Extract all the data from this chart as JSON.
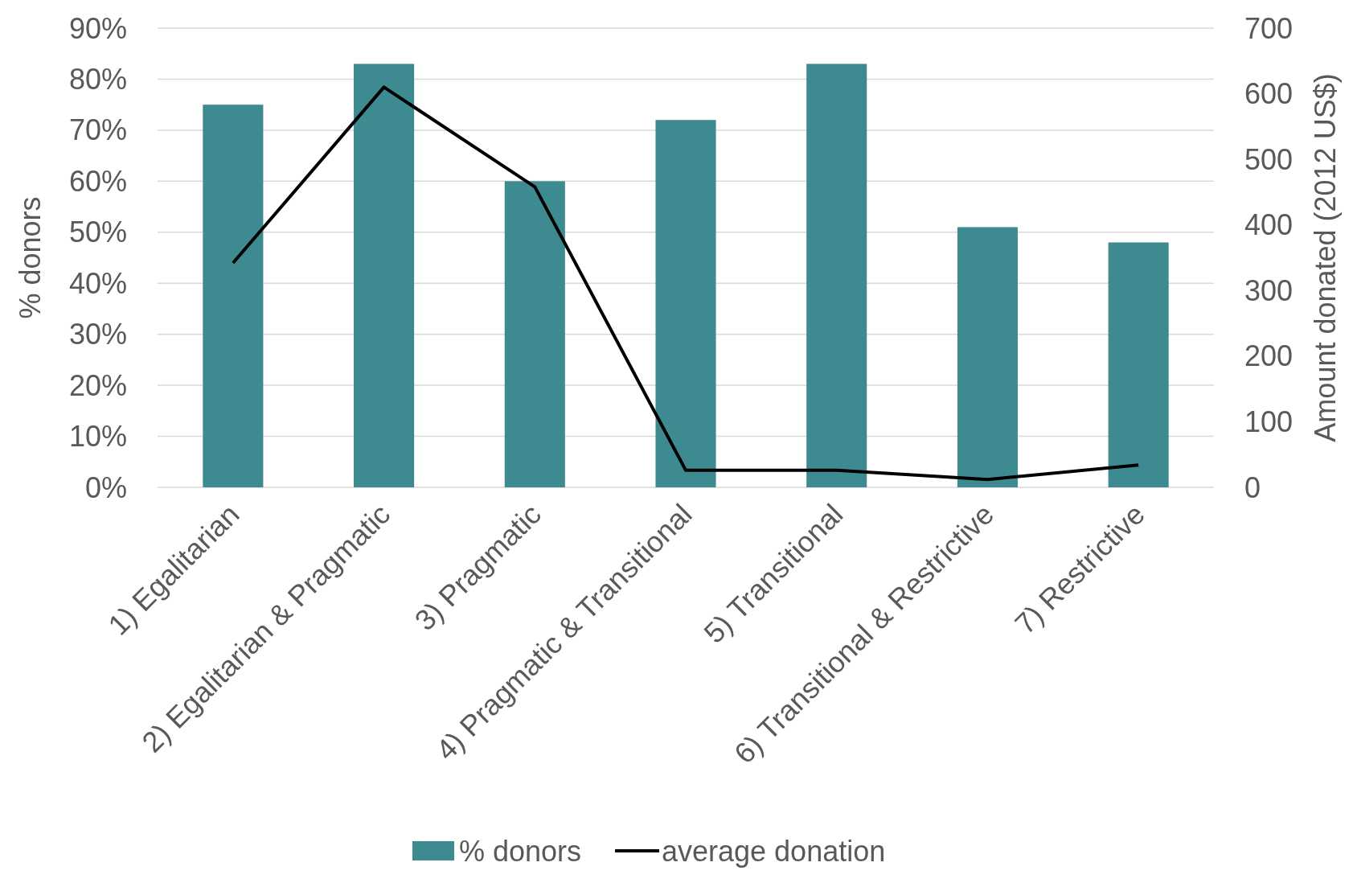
{
  "chart_data": {
    "type": "bar",
    "categories": [
      "1) Egalitarian",
      "2) Egalitarian & Pragmatic",
      "3) Pragmatic",
      "4) Pragmatic & Transitional",
      "5) Transitional",
      "6) Transitional & Restrictive",
      "7) Restrictive"
    ],
    "series": [
      {
        "name": "% donors",
        "color": "#3d8b91",
        "values": [
          75,
          83,
          60,
          72,
          83,
          51,
          48
        ]
      },
      {
        "name": "average donation",
        "type": "line",
        "axis": "y2",
        "color": "#000000",
        "values": [
          342,
          610,
          458,
          26,
          26,
          12,
          34
        ]
      }
    ],
    "ylabel": "% donors",
    "y2label": "Amount donated (2012 US$)",
    "ylim": [
      0,
      90
    ],
    "yticks": [
      {
        "value": 0,
        "label": "0%"
      },
      {
        "value": 10,
        "label": "10%"
      },
      {
        "value": 20,
        "label": "20%"
      },
      {
        "value": 30,
        "label": "30%"
      },
      {
        "value": 40,
        "label": "40%"
      },
      {
        "value": 50,
        "label": "50%"
      },
      {
        "value": 60,
        "label": "60%"
      },
      {
        "value": 70,
        "label": "70%"
      },
      {
        "value": 80,
        "label": "80%"
      },
      {
        "value": 90,
        "label": "90%"
      }
    ],
    "y2lim": [
      0,
      700
    ],
    "y2ticks": [
      0,
      100,
      200,
      300,
      400,
      500,
      600,
      700
    ],
    "grid": "y",
    "legend": "bottom",
    "marker": "none"
  }
}
